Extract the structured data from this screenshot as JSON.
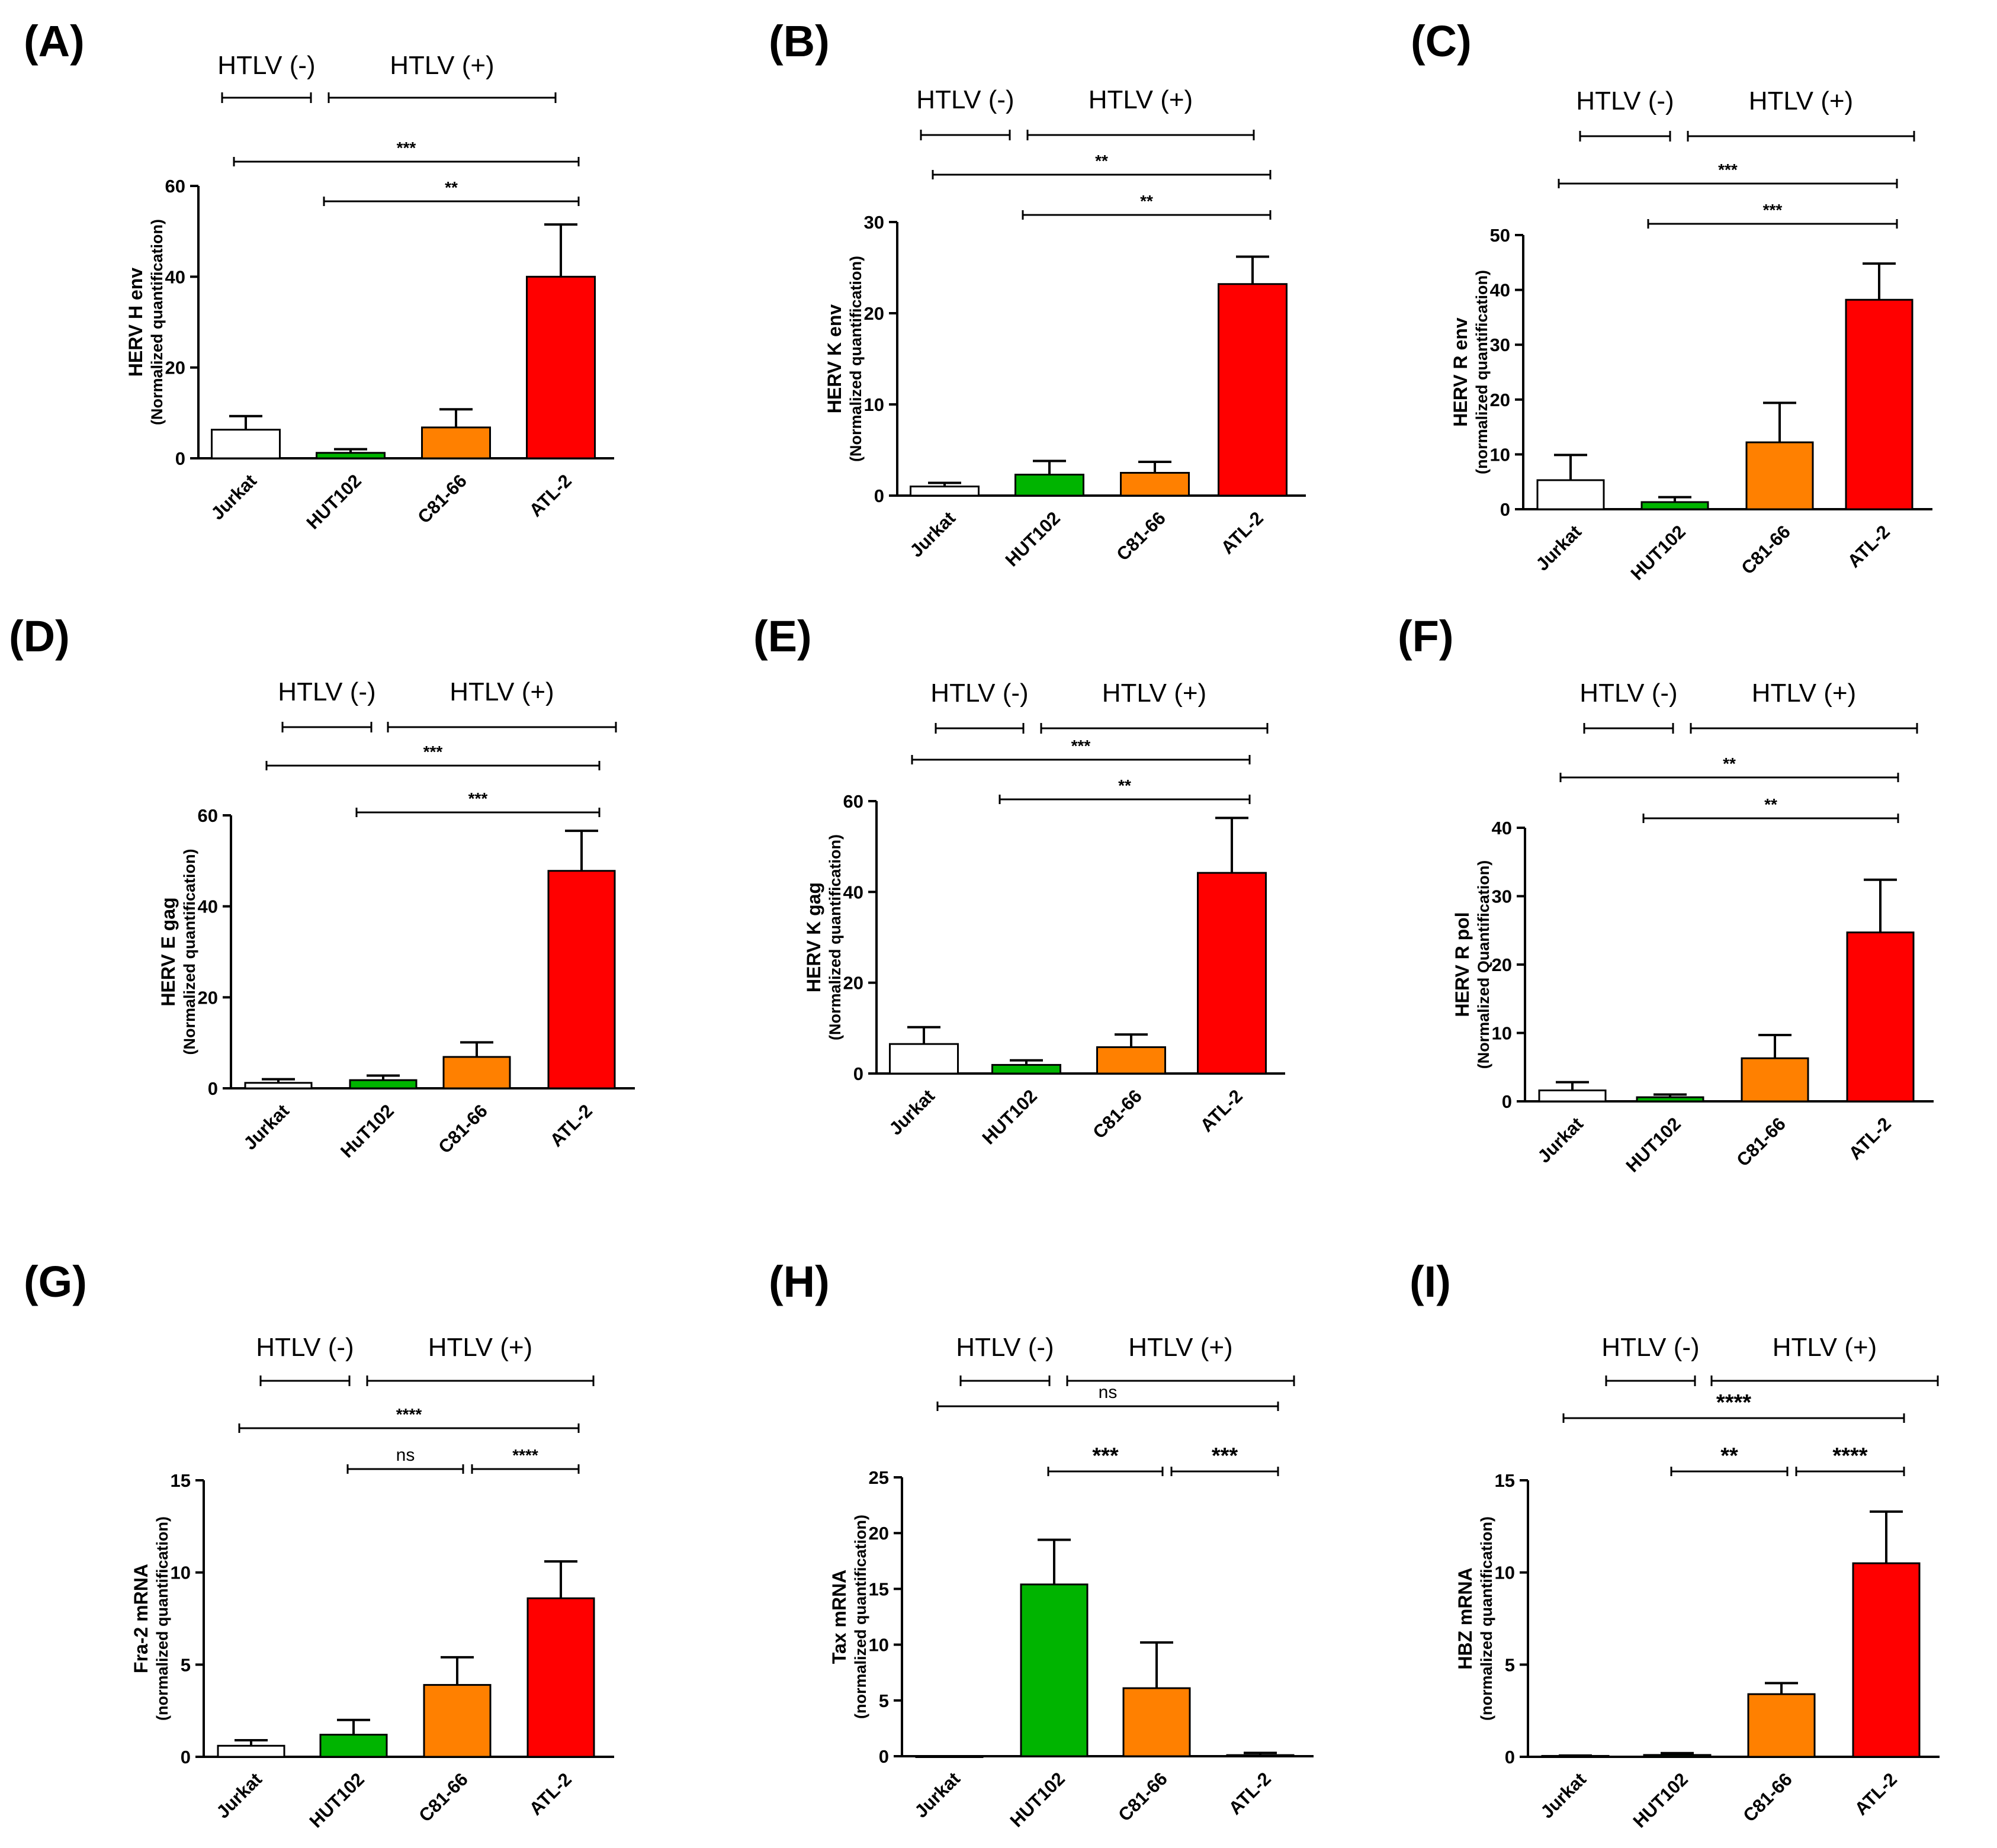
{
  "chart_data": [
    {
      "panel": "(A)",
      "type": "bar",
      "ylabel": "HERV H env",
      "ylabel_sub": "(Normalized quantification)",
      "categories": [
        "Jurkat",
        "HUT102",
        "C81-66",
        "ATL-2"
      ],
      "values": [
        6.3,
        1.2,
        6.8,
        40
      ],
      "errors": [
        3,
        0.8,
        4,
        11.5
      ],
      "ylim": [
        0,
        60
      ],
      "yticks": [
        "0",
        "20",
        "40",
        "60"
      ],
      "ytick_values": [
        0,
        20,
        40,
        60
      ],
      "groups": [
        "HTLV (-)",
        "HTLV (+)"
      ],
      "colors": [
        "#ffffff",
        "#00b400",
        "#ff8000",
        "#ff0000"
      ],
      "significance": [
        {
          "label": "***",
          "from": 0,
          "to": 3
        },
        {
          "label": "**",
          "from": 1,
          "to": 3
        }
      ]
    },
    {
      "panel": "(B)",
      "type": "bar",
      "ylabel": "HERV K env",
      "ylabel_sub": "(Normalized quantification)",
      "categories": [
        "Jurkat",
        "HUT102",
        "C81-66",
        "ATL-2"
      ],
      "values": [
        1.0,
        2.3,
        2.5,
        23.2
      ],
      "errors": [
        0.4,
        1.5,
        1.2,
        3.0
      ],
      "ylim": [
        0,
        30
      ],
      "yticks": [
        "0",
        "10",
        "20",
        "30"
      ],
      "ytick_values": [
        0,
        10,
        20,
        30
      ],
      "groups": [
        "HTLV (-)",
        "HTLV (+)"
      ],
      "colors": [
        "#ffffff",
        "#00b400",
        "#ff8000",
        "#ff0000"
      ],
      "significance": [
        {
          "label": "**",
          "from": 0,
          "to": 3
        },
        {
          "label": "**",
          "from": 1,
          "to": 3
        }
      ]
    },
    {
      "panel": "(C)",
      "type": "bar",
      "ylabel": "HERV R env",
      "ylabel_sub": "(normalized quantification)",
      "categories": [
        "Jurkat",
        "HUT102",
        "C81-66",
        "ATL-2"
      ],
      "values": [
        5.3,
        1.3,
        12.2,
        38.2
      ],
      "errors": [
        4.6,
        0.9,
        7.2,
        6.6
      ],
      "ylim": [
        0,
        50
      ],
      "yticks": [
        "0",
        "10",
        "20",
        "30",
        "40",
        "50"
      ],
      "ytick_values": [
        0,
        10,
        20,
        30,
        40,
        50
      ],
      "groups": [
        "HTLV (-)",
        "HTLV (+)"
      ],
      "colors": [
        "#ffffff",
        "#00b400",
        "#ff8000",
        "#ff0000"
      ],
      "significance": [
        {
          "label": "***",
          "from": 0,
          "to": 3
        },
        {
          "label": "***",
          "from": 1,
          "to": 3
        }
      ]
    },
    {
      "panel": "(D)",
      "type": "bar",
      "ylabel": "HERV E gag",
      "ylabel_sub": "(Normalized quantification)",
      "categories": [
        "Jurkat",
        "HuT102",
        "C81-66",
        "ATL-2"
      ],
      "values": [
        1.2,
        1.8,
        6.9,
        47.8
      ],
      "errors": [
        0.8,
        1.0,
        3.2,
        8.8
      ],
      "ylim": [
        0,
        60
      ],
      "yticks": [
        "0",
        "20",
        "40",
        "60"
      ],
      "ytick_values": [
        0,
        20,
        40,
        60
      ],
      "groups": [
        "HTLV (-)",
        "HTLV (+)"
      ],
      "colors": [
        "#ffffff",
        "#00b400",
        "#ff8000",
        "#ff0000"
      ],
      "significance": [
        {
          "label": "***",
          "from": 0,
          "to": 3
        },
        {
          "label": "***",
          "from": 1,
          "to": 3
        }
      ]
    },
    {
      "panel": "(E)",
      "type": "bar",
      "ylabel": "HERV K gag",
      "ylabel_sub": "(Normalized quantification)",
      "categories": [
        "Jurkat",
        "HUT102",
        "C81-66",
        "ATL-2"
      ],
      "values": [
        6.5,
        1.9,
        5.8,
        44.2
      ],
      "errors": [
        3.7,
        1.0,
        2.8,
        12.1
      ],
      "ylim": [
        0,
        60
      ],
      "yticks": [
        "0",
        "20",
        "40",
        "60"
      ],
      "ytick_values": [
        0,
        20,
        40,
        60
      ],
      "groups": [
        "HTLV (-)",
        "HTLV (+)"
      ],
      "colors": [
        "#ffffff",
        "#00b400",
        "#ff8000",
        "#ff0000"
      ],
      "significance": [
        {
          "label": "***",
          "from": 0,
          "to": 3
        },
        {
          "label": "**",
          "from": 1,
          "to": 3
        }
      ]
    },
    {
      "panel": "(F)",
      "type": "bar",
      "ylabel": "HERV R pol",
      "ylabel_sub": "(Normalized Quantification)",
      "categories": [
        "Jurkat",
        "HUT102",
        "C81-66",
        "ATL-2"
      ],
      "values": [
        1.6,
        0.6,
        6.3,
        24.7
      ],
      "errors": [
        1.2,
        0.4,
        3.4,
        7.7
      ],
      "ylim": [
        0,
        40
      ],
      "yticks": [
        "0",
        "10",
        "20",
        "30",
        "40"
      ],
      "ytick_values": [
        0,
        10,
        20,
        30,
        40
      ],
      "groups": [
        "HTLV (-)",
        "HTLV (+)"
      ],
      "colors": [
        "#ffffff",
        "#00b400",
        "#ff8000",
        "#ff0000"
      ],
      "significance": [
        {
          "label": "**",
          "from": 0,
          "to": 3
        },
        {
          "label": "**",
          "from": 1,
          "to": 3
        }
      ]
    },
    {
      "panel": "(G)",
      "type": "bar",
      "ylabel": "Fra-2 mRNA",
      "ylabel_sub": "(normalized quantification)",
      "categories": [
        "Jurkat",
        "HUT102",
        "C81-66",
        "ATL-2"
      ],
      "values": [
        0.6,
        1.2,
        3.9,
        8.6
      ],
      "errors": [
        0.3,
        0.8,
        1.5,
        2.0
      ],
      "ylim": [
        0,
        15
      ],
      "yticks": [
        "0",
        "5",
        "10",
        "15"
      ],
      "ytick_values": [
        0,
        5,
        10,
        15
      ],
      "groups": [
        "HTLV (-)",
        "HTLV (+)"
      ],
      "colors": [
        "#ffffff",
        "#00b400",
        "#ff8000",
        "#ff0000"
      ],
      "significance": [
        {
          "label": "****",
          "from": 0,
          "to": 3
        },
        {
          "label": "ns",
          "from": 1,
          "to": 2
        },
        {
          "label": "****",
          "from": 2,
          "to": 3
        }
      ]
    },
    {
      "panel": "(H)",
      "type": "bar",
      "ylabel": "Tax mRNA",
      "ylabel_sub": "(normalized quantification)",
      "categories": [
        "Jurkat",
        "HUT102",
        "C81-66",
        "ATL-2"
      ],
      "values": [
        0,
        15.4,
        6.1,
        0.1
      ],
      "errors": [
        0,
        4.0,
        4.1,
        0.2
      ],
      "ylim": [
        0,
        25
      ],
      "yticks": [
        "0",
        "5",
        "10",
        "15",
        "20",
        "25"
      ],
      "ytick_values": [
        0,
        5,
        10,
        15,
        20,
        25
      ],
      "groups": [
        "HTLV (-)",
        "HTLV (+)"
      ],
      "colors": [
        "#ffffff",
        "#00b400",
        "#ff8000",
        "#ff0000"
      ],
      "significance": [
        {
          "label": "ns",
          "from": 0,
          "to": 3
        },
        {
          "label": "***",
          "from": 1,
          "to": 2
        },
        {
          "label": "***",
          "from": 2,
          "to": 3
        }
      ]
    },
    {
      "panel": "(I)",
      "type": "bar",
      "ylabel": "HBZ mRNA",
      "ylabel_sub": "(normalized quantification)",
      "categories": [
        "Jurkat",
        "HUT102",
        "C81-66",
        "ATL-2"
      ],
      "values": [
        0.05,
        0.1,
        3.4,
        10.5
      ],
      "errors": [
        0.02,
        0.1,
        0.6,
        2.8
      ],
      "ylim": [
        0,
        15
      ],
      "yticks": [
        "0",
        "5",
        "10",
        "15"
      ],
      "ytick_values": [
        0,
        5,
        10,
        15
      ],
      "groups": [
        "HTLV (-)",
        "HTLV (+)"
      ],
      "colors": [
        "#ffffff",
        "#00b400",
        "#ff8000",
        "#ff0000"
      ],
      "significance": [
        {
          "label": "****",
          "from": 0,
          "to": 3
        },
        {
          "label": "**",
          "from": 1,
          "to": 2
        },
        {
          "label": "****",
          "from": 2,
          "to": 3
        }
      ]
    }
  ]
}
